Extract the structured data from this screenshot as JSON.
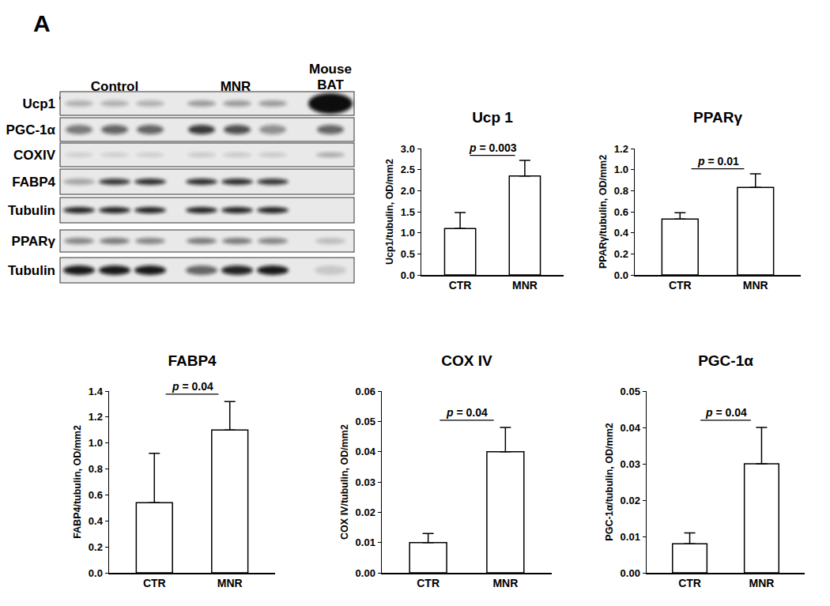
{
  "panel_label": "A",
  "blot": {
    "groups": [
      "Control",
      "MNR",
      "Mouse BAT"
    ],
    "rows": [
      "Ucp1",
      "PGC-1α",
      "COXIV",
      "FABP4",
      "Tubulin",
      "PPARγ",
      "Tubulin"
    ]
  },
  "chart_data": [
    {
      "type": "bar",
      "title": "Ucp 1",
      "ylabel": "Ucp1/tubulin, OD/mm2",
      "categories": [
        "CTR",
        "MNR"
      ],
      "values": [
        1.1,
        2.35
      ],
      "error": [
        0.38,
        0.37
      ],
      "color": "#ffffff",
      "annotation": "p = 0.003",
      "ylim": [
        0,
        3.0
      ],
      "yticks": [
        {
          "value": 0,
          "label": "0.0"
        },
        {
          "value": 0.5,
          "label": "0.5"
        },
        {
          "value": 1,
          "label": "1.0"
        },
        {
          "value": 1.5,
          "label": "1.5"
        },
        {
          "value": 2,
          "label": "2.0"
        },
        {
          "value": 2.5,
          "label": "2.5"
        },
        {
          "value": 3,
          "label": "3.0"
        }
      ],
      "grid": false
    },
    {
      "type": "bar",
      "title": "PPARγ",
      "ylabel": "PPARγ/tubulin, OD/mm2",
      "categories": [
        "CTR",
        "MNR"
      ],
      "values": [
        0.53,
        0.83
      ],
      "error": [
        0.06,
        0.13
      ],
      "color": "#ffffff",
      "annotation": "p = 0.01",
      "ylim": [
        0,
        1.2
      ],
      "yticks": [
        {
          "value": 0,
          "label": "0.0"
        },
        0.2,
        0.4,
        0.6,
        0.8,
        {
          "value": 1,
          "label": "1.0"
        },
        1.2
      ],
      "grid": false
    },
    {
      "type": "bar",
      "title": "FABP4",
      "ylabel": "FABP4/tubulin, OD/mm2",
      "categories": [
        "CTR",
        "MNR"
      ],
      "values": [
        0.54,
        1.1
      ],
      "error": [
        0.38,
        0.22
      ],
      "color": "#ffffff",
      "annotation": "p = 0.04",
      "ylim": [
        0,
        1.4
      ],
      "yticks": [
        {
          "value": 0,
          "label": "0.0"
        },
        0.2,
        0.4,
        0.6,
        0.8,
        {
          "value": 1,
          "label": "1.0"
        },
        1.2,
        1.4
      ],
      "grid": false
    },
    {
      "type": "bar",
      "title": "COX IV",
      "ylabel": "COX IV/tubulin, OD/mm2",
      "categories": [
        "CTR",
        "MNR"
      ],
      "values": [
        0.01,
        0.04
      ],
      "error": [
        0.003,
        0.008
      ],
      "color": "#ffffff",
      "annotation": "p = 0.04",
      "ylim": [
        0,
        0.06
      ],
      "yticks": [
        {
          "value": 0,
          "label": "0.00"
        },
        0.01,
        0.02,
        0.03,
        0.04,
        0.05,
        0.06
      ],
      "grid": false
    },
    {
      "type": "bar",
      "title": "PGC-1α",
      "ylabel": "PGC-1α/tubulin, OD/mm2",
      "categories": [
        "CTR",
        "MNR"
      ],
      "values": [
        0.008,
        0.03
      ],
      "error": [
        0.003,
        0.01
      ],
      "color": "#ffffff",
      "annotation": "p = 0.04",
      "ylim": [
        0,
        0.05
      ],
      "yticks": [
        {
          "value": 0,
          "label": "0.00"
        },
        0.01,
        0.02,
        0.03,
        0.04,
        0.05
      ],
      "grid": false
    }
  ]
}
